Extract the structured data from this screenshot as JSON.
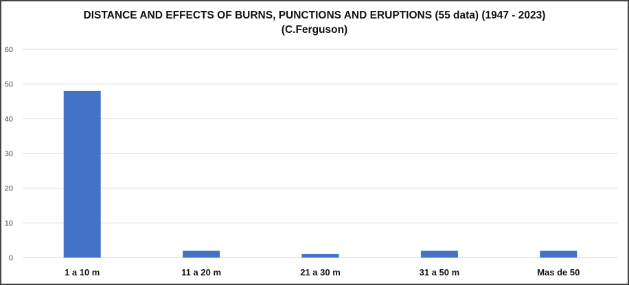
{
  "chart_data": {
    "type": "bar",
    "title": "DISTANCE AND EFFECTS OF BURNS, PUNCTIONS AND ERUPTIONS (55 data) (1947 - 2023)",
    "subtitle": "(C.Ferguson)",
    "categories": [
      "1 a 10 m",
      "11 a 20 m",
      "21 a 30 m",
      "31 a 50 m",
      "Mas de 50"
    ],
    "values": [
      48,
      2,
      1,
      2,
      2
    ],
    "ylim": [
      0,
      60
    ],
    "yticks": [
      "0",
      "10",
      "20",
      "30",
      "40",
      "50",
      "60"
    ],
    "grid": true,
    "bar_color": "#4472C4",
    "grid_color": "#D9D9D9"
  }
}
